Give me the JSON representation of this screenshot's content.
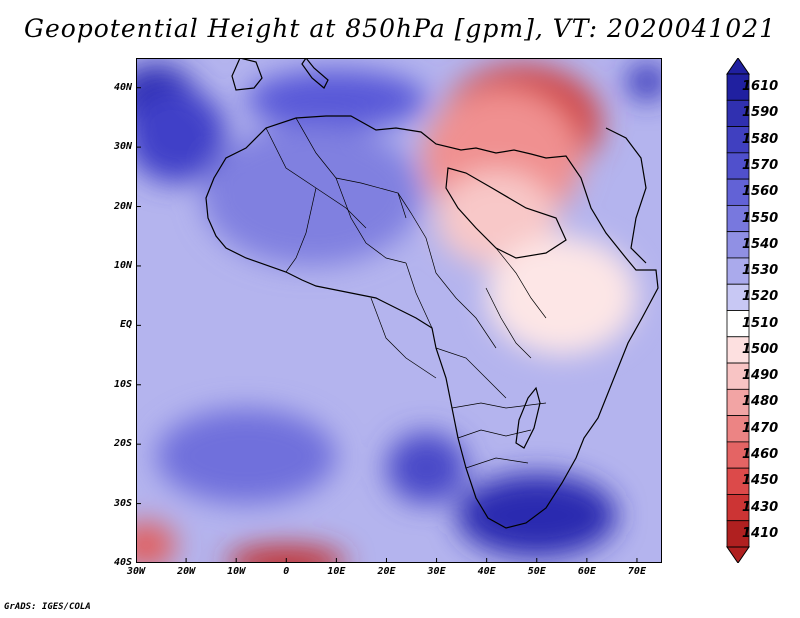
{
  "title": "Geopotential Height at 850hPa [gpm], VT: 2020041021",
  "credit": "GrADS: IGES/COLA",
  "map": {
    "lon_range": [
      -30,
      75
    ],
    "lat_range": [
      -40,
      45
    ],
    "lat_labels": [
      "40N",
      "30N",
      "20N",
      "10N",
      "EQ",
      "10S",
      "20S",
      "30S",
      "40S"
    ],
    "lon_labels": [
      "30W",
      "20W",
      "10W",
      "0",
      "10E",
      "20E",
      "30E",
      "40E",
      "50E",
      "60E",
      "70E"
    ],
    "field_blobs": [
      {
        "desc": "north atlantic high",
        "lon": -26,
        "lat": 38,
        "rx": 8,
        "ry": 6,
        "color": "#2a2ab0"
      },
      {
        "desc": "atlantic high spread",
        "lon": -22,
        "lat": 32,
        "rx": 10,
        "ry": 8,
        "color": "#4040c8"
      },
      {
        "desc": "mediterranean",
        "lon": 10,
        "lat": 38,
        "rx": 18,
        "ry": 5,
        "color": "#5858d8"
      },
      {
        "desc": "middle east low",
        "lon": 47,
        "lat": 34,
        "rx": 16,
        "ry": 10,
        "color": "#d04545"
      },
      {
        "desc": "middle east low outer",
        "lon": 43,
        "lat": 28,
        "rx": 16,
        "ry": 12,
        "color": "#f09090"
      },
      {
        "desc": "arabia",
        "lon": 42,
        "lat": 18,
        "rx": 12,
        "ry": 8,
        "color": "#f8c8c8"
      },
      {
        "desc": "horn warm",
        "lon": 55,
        "lat": 5,
        "rx": 15,
        "ry": 10,
        "color": "#fde6e6"
      },
      {
        "desc": "himalaya high",
        "lon": 72,
        "lat": 41,
        "rx": 4,
        "ry": 3,
        "color": "#3030b8"
      },
      {
        "desc": "south indian high",
        "lon": 50,
        "lat": -32,
        "rx": 16,
        "ry": 7,
        "color": "#2a2ab0"
      },
      {
        "desc": "south africa high",
        "lon": 28,
        "lat": -24,
        "rx": 8,
        "ry": 6,
        "color": "#4848c8"
      },
      {
        "desc": "south atlantic",
        "lon": -8,
        "lat": -22,
        "rx": 18,
        "ry": 8,
        "color": "#7070dc"
      },
      {
        "desc": "southern low west",
        "lon": -28,
        "lat": -37,
        "rx": 6,
        "ry": 4,
        "color": "#e06060"
      },
      {
        "desc": "southern low",
        "lon": 0,
        "lat": -40,
        "rx": 12,
        "ry": 3,
        "color": "#c03030"
      },
      {
        "desc": "sahara",
        "lon": 5,
        "lat": 22,
        "rx": 22,
        "ry": 12,
        "color": "#8080e0"
      }
    ]
  },
  "colorbar": {
    "labels": [
      "1610",
      "1590",
      "1580",
      "1570",
      "1560",
      "1550",
      "1540",
      "1530",
      "1520",
      "1510",
      "1500",
      "1490",
      "1480",
      "1470",
      "1460",
      "1450",
      "1430",
      "1410"
    ],
    "colors": [
      "#2020a0",
      "#3030b0",
      "#4040c0",
      "#5050cc",
      "#6262d6",
      "#7878de",
      "#9090e4",
      "#aaaaec",
      "#c8c8f4",
      "#ffffff",
      "#fde0e0",
      "#f8c4c4",
      "#f2a4a4",
      "#ec8484",
      "#e46464",
      "#dc4a4a",
      "#cc3434",
      "#b02020"
    ]
  }
}
